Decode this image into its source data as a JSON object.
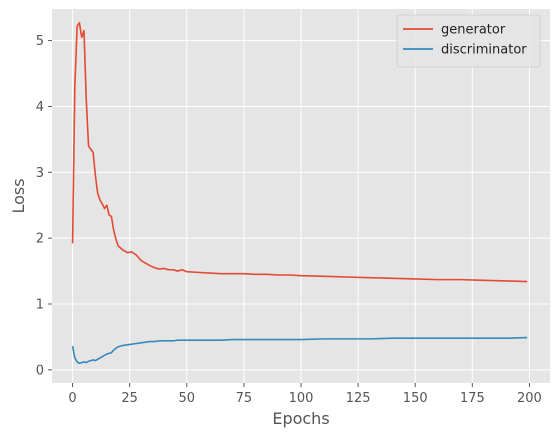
{
  "chart_data": {
    "type": "line",
    "title": "",
    "xlabel": "Epochs",
    "ylabel": "Loss",
    "xlim": [
      -9,
      209
    ],
    "ylim": [
      -0.2,
      5.48
    ],
    "xticks": [
      0,
      25,
      50,
      75,
      100,
      125,
      150,
      175,
      200
    ],
    "yticks": [
      0,
      1,
      2,
      3,
      4,
      5
    ],
    "grid": true,
    "legend_position": "top-right",
    "background": "#e5e5e5",
    "grid_color": "#ffffff",
    "x": [
      0,
      1,
      2,
      3,
      4,
      5,
      6,
      7,
      8,
      9,
      10,
      11,
      12,
      13,
      14,
      15,
      16,
      17,
      18,
      19,
      20,
      22,
      24,
      26,
      28,
      30,
      32,
      34,
      36,
      38,
      40,
      42,
      44,
      46,
      48,
      50,
      55,
      60,
      65,
      70,
      75,
      80,
      85,
      90,
      95,
      100,
      110,
      120,
      130,
      140,
      150,
      160,
      170,
      180,
      190,
      199
    ],
    "series": [
      {
        "name": "generator",
        "color": "#e24a33",
        "values": [
          1.92,
          4.3,
          5.22,
          5.27,
          5.05,
          5.15,
          4.1,
          3.4,
          3.35,
          3.3,
          2.95,
          2.68,
          2.58,
          2.52,
          2.45,
          2.5,
          2.35,
          2.33,
          2.12,
          1.98,
          1.88,
          1.82,
          1.78,
          1.79,
          1.74,
          1.66,
          1.62,
          1.58,
          1.55,
          1.53,
          1.54,
          1.52,
          1.52,
          1.5,
          1.52,
          1.49,
          1.48,
          1.47,
          1.46,
          1.46,
          1.46,
          1.45,
          1.45,
          1.44,
          1.44,
          1.43,
          1.42,
          1.41,
          1.4,
          1.39,
          1.38,
          1.37,
          1.37,
          1.36,
          1.35,
          1.34
        ]
      },
      {
        "name": "discriminator",
        "color": "#348abd",
        "values": [
          0.36,
          0.18,
          0.12,
          0.1,
          0.11,
          0.12,
          0.11,
          0.13,
          0.14,
          0.15,
          0.14,
          0.16,
          0.18,
          0.2,
          0.22,
          0.24,
          0.25,
          0.26,
          0.3,
          0.33,
          0.35,
          0.37,
          0.38,
          0.39,
          0.4,
          0.41,
          0.42,
          0.43,
          0.43,
          0.44,
          0.44,
          0.44,
          0.44,
          0.45,
          0.45,
          0.45,
          0.45,
          0.45,
          0.45,
          0.46,
          0.46,
          0.46,
          0.46,
          0.46,
          0.46,
          0.46,
          0.47,
          0.47,
          0.47,
          0.48,
          0.48,
          0.48,
          0.48,
          0.48,
          0.48,
          0.49
        ]
      }
    ]
  }
}
